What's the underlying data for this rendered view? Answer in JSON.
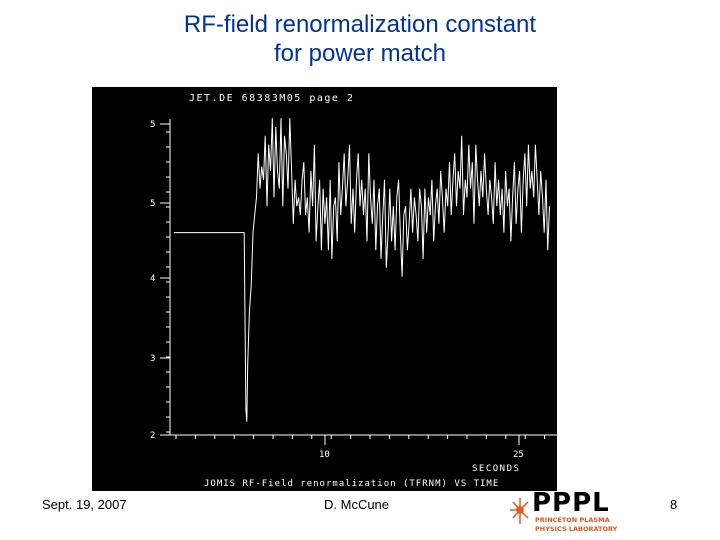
{
  "slide": {
    "title_line1": "RF-field renormalization constant",
    "title_line2": "for power match",
    "footer_date": "Sept. 19, 2007",
    "footer_author": "D. McCune",
    "page_number": "8"
  },
  "logo": {
    "name": "PPPL",
    "subtitle_line1": "PRINCETON PLASMA",
    "subtitle_line2": "PHYSICS LABORATORY",
    "colors": {
      "letters": "#000000",
      "accent": "#e8551e"
    }
  },
  "chart_data": {
    "type": "line",
    "header": "JET.DE 68383M05 page 2",
    "footer_label": "JOMIS RF-Field renormalization (TFRNM) VS TIME",
    "xlabel": "SECONDS",
    "xlim": [
      6,
      28
    ],
    "ylim": [
      2,
      5.5
    ],
    "x_ticks": [
      "10",
      "25"
    ],
    "y_ticks": [
      "2",
      "3",
      "4",
      "5",
      "5"
    ],
    "colors": {
      "background": "#000000",
      "foreground": "#ffffff"
    },
    "grid": false,
    "series": [
      {
        "x": [
          6.0,
          10.0,
          10.05,
          10.1,
          10.15,
          10.2,
          10.3,
          10.4,
          10.5,
          10.6,
          10.7,
          10.8,
          10.9,
          11.0,
          11.1,
          11.2,
          11.3,
          11.4,
          11.5,
          11.6,
          11.7,
          11.8,
          11.9,
          12.0,
          12.1,
          12.2,
          12.3,
          12.4,
          12.5,
          12.6,
          12.7,
          12.8,
          12.9,
          13.0,
          13.1,
          13.2,
          13.3,
          13.4,
          13.5,
          13.6,
          13.7,
          13.8,
          13.9,
          14.0,
          14.1,
          14.2,
          14.3,
          14.4,
          14.5,
          14.6,
          14.7,
          14.8,
          14.9,
          15.0,
          15.1,
          15.2,
          15.3,
          15.4,
          15.5,
          15.6,
          15.7,
          15.8,
          15.9,
          16.0,
          16.1,
          16.2,
          16.3,
          16.4,
          16.5,
          16.6,
          16.7,
          16.8,
          16.9,
          17.0,
          17.1,
          17.2,
          17.3,
          17.4,
          17.5,
          17.6,
          17.7,
          17.8,
          17.9,
          18.0,
          18.1,
          18.2,
          18.3,
          18.4,
          18.5,
          18.6,
          18.7,
          18.8,
          18.9,
          19.0,
          19.1,
          19.2,
          19.3,
          19.4,
          19.5,
          19.6,
          19.7,
          19.8,
          19.9,
          20.0,
          20.1,
          20.2,
          20.3,
          20.4,
          20.5,
          20.6,
          20.7,
          20.8,
          20.9,
          21.0,
          21.1,
          21.2,
          21.3,
          21.4,
          21.5,
          21.6,
          21.7,
          21.8,
          21.9,
          22.0,
          22.1,
          22.2,
          22.3,
          22.4,
          22.5,
          22.6,
          22.7,
          22.8,
          22.9,
          23.0,
          23.1,
          23.2,
          23.3,
          23.4,
          23.5,
          23.6,
          23.7,
          23.8,
          23.9,
          24.0,
          24.1,
          24.2,
          24.3,
          24.4,
          24.5,
          24.6,
          24.7,
          24.8,
          24.9,
          25.0,
          25.1,
          25.2,
          25.3,
          25.4,
          25.5,
          25.6,
          25.7,
          25.8,
          25.9,
          26.0,
          26.1,
          26.2,
          26.3,
          26.4,
          26.5,
          26.6,
          26.7,
          26.8,
          26.9,
          27.0,
          27.1,
          27.2,
          27.3,
          27.4
        ],
        "y": [
          4.3,
          4.3,
          3.2,
          2.3,
          2.15,
          2.8,
          3.4,
          3.7,
          4.3,
          4.5,
          4.7,
          5.2,
          4.8,
          5.05,
          4.9,
          5.4,
          4.6,
          5.3,
          5.0,
          5.6,
          4.7,
          5.5,
          5.0,
          4.8,
          5.6,
          4.6,
          5.4,
          5.2,
          4.8,
          5.6,
          5.0,
          4.4,
          4.9,
          4.6,
          4.7,
          4.5,
          4.9,
          5.1,
          4.5,
          4.7,
          4.3,
          5.0,
          4.6,
          5.3,
          4.2,
          4.6,
          4.9,
          4.1,
          4.8,
          4.4,
          4.7,
          4.1,
          4.9,
          4.0,
          4.6,
          4.7,
          4.2,
          5.1,
          4.5,
          4.8,
          5.2,
          4.6,
          4.9,
          5.3,
          4.4,
          4.8,
          4.3,
          4.9,
          5.2,
          4.6,
          4.9,
          4.5,
          4.8,
          4.2,
          5.2,
          4.7,
          4.4,
          4.9,
          4.1,
          4.6,
          4.8,
          4.0,
          4.5,
          4.9,
          3.9,
          4.3,
          4.8,
          4.2,
          4.6,
          4.1,
          4.7,
          4.9,
          4.3,
          3.8,
          4.5,
          4.6,
          4.1,
          4.4,
          4.8,
          4.3,
          4.7,
          4.5,
          4.2,
          4.8,
          4.6,
          4.0,
          4.8,
          4.3,
          4.7,
          4.5,
          4.9,
          4.2,
          4.6,
          4.8,
          4.4,
          5.0,
          4.7,
          4.3,
          4.8,
          4.6,
          5.1,
          4.5,
          4.9,
          5.2,
          4.6,
          5.0,
          4.8,
          5.4,
          4.5,
          4.9,
          4.7,
          5.3,
          4.8,
          5.1,
          4.4,
          5.3,
          4.9,
          4.6,
          5.0,
          4.7,
          5.2,
          4.8,
          4.5,
          4.9,
          4.7,
          4.4,
          5.1,
          4.6,
          4.9,
          4.5,
          4.8,
          4.3,
          5.0,
          4.6,
          4.8,
          4.2,
          4.7,
          5.1,
          4.4,
          4.8,
          5.0,
          4.3,
          4.9,
          5.2,
          4.6,
          5.3,
          4.8,
          5.0,
          4.7,
          5.3,
          4.9,
          4.5,
          5.0,
          4.7,
          4.3,
          4.9,
          4.1,
          4.6
        ]
      }
    ]
  }
}
